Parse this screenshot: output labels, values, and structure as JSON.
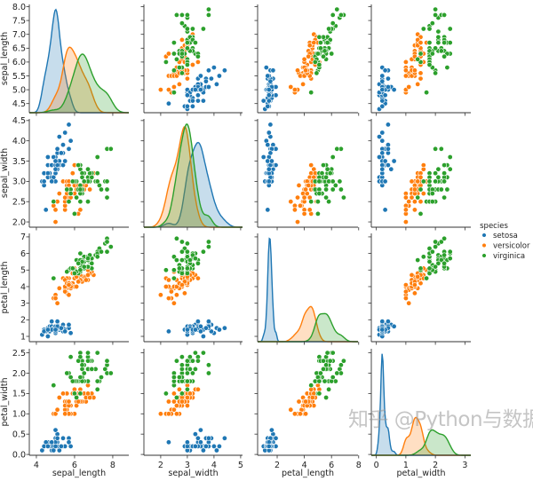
{
  "chart_data": {
    "type": "scatter",
    "kind": "pairplot",
    "diag_kind": "kde",
    "hue": "species",
    "grid": false,
    "legend": {
      "title": "species",
      "placement": "right",
      "entries": [
        "setosa",
        "versicolor",
        "virginica"
      ]
    },
    "colors": {
      "setosa": "#1f77b4",
      "versicolor": "#ff7f0e",
      "virginica": "#2ca02c"
    },
    "variables": [
      "sepal_length",
      "sepal_width",
      "petal_length",
      "petal_width"
    ],
    "axes": {
      "sepal_length": {
        "xlim": [
          3.63,
          8.84
        ],
        "ylim": [
          4.17,
          8.08
        ],
        "xticks": [
          "4",
          "6",
          "8"
        ],
        "yticks": [
          "4.5",
          "5.0",
          "5.5",
          "6.0",
          "6.5",
          "7.0",
          "7.5",
          "8.0"
        ]
      },
      "sepal_width": {
        "xlim": [
          1.37,
          5.07
        ],
        "ylim": [
          1.87,
          4.54
        ],
        "xticks": [
          "2",
          "3",
          "4",
          "5"
        ],
        "yticks": [
          "2.0",
          "2.5",
          "3.0",
          "3.5",
          "4.0",
          "4.5"
        ]
      },
      "petal_length": {
        "xlim": [
          0.56,
          7.95
        ],
        "ylim": [
          0.68,
          7.21
        ],
        "xticks": [
          "2",
          "4",
          "6",
          "8"
        ],
        "yticks": [
          "1",
          "2",
          "3",
          "4",
          "5",
          "6",
          "7"
        ]
      },
      "petal_width": {
        "xlim": [
          -0.17,
          3.2
        ],
        "ylim": [
          -0.02,
          2.6
        ],
        "xticks": [
          "0",
          "1",
          "2",
          "3"
        ],
        "yticks": [
          "0.0",
          "0.5",
          "1.0",
          "1.5",
          "2.0",
          "2.5"
        ]
      }
    },
    "data": {
      "setosa": [
        [
          5.1,
          3.5,
          1.4,
          0.2
        ],
        [
          4.9,
          3.0,
          1.4,
          0.2
        ],
        [
          4.7,
          3.2,
          1.3,
          0.2
        ],
        [
          4.6,
          3.1,
          1.5,
          0.2
        ],
        [
          5.0,
          3.6,
          1.4,
          0.2
        ],
        [
          5.4,
          3.9,
          1.7,
          0.4
        ],
        [
          4.6,
          3.4,
          1.4,
          0.3
        ],
        [
          5.0,
          3.4,
          1.5,
          0.2
        ],
        [
          4.4,
          2.9,
          1.4,
          0.2
        ],
        [
          4.9,
          3.1,
          1.5,
          0.1
        ],
        [
          5.4,
          3.7,
          1.5,
          0.2
        ],
        [
          4.8,
          3.4,
          1.6,
          0.2
        ],
        [
          4.8,
          3.0,
          1.4,
          0.1
        ],
        [
          4.3,
          3.0,
          1.1,
          0.1
        ],
        [
          5.8,
          4.0,
          1.2,
          0.2
        ],
        [
          5.7,
          4.4,
          1.5,
          0.4
        ],
        [
          5.4,
          3.9,
          1.3,
          0.4
        ],
        [
          5.1,
          3.5,
          1.4,
          0.3
        ],
        [
          5.7,
          3.8,
          1.7,
          0.3
        ],
        [
          5.1,
          3.8,
          1.5,
          0.3
        ],
        [
          5.4,
          3.4,
          1.7,
          0.2
        ],
        [
          5.1,
          3.7,
          1.5,
          0.4
        ],
        [
          4.6,
          3.6,
          1.0,
          0.2
        ],
        [
          5.1,
          3.3,
          1.7,
          0.5
        ],
        [
          4.8,
          3.4,
          1.9,
          0.2
        ],
        [
          5.0,
          3.0,
          1.6,
          0.2
        ],
        [
          5.0,
          3.4,
          1.6,
          0.4
        ],
        [
          5.2,
          3.5,
          1.5,
          0.2
        ],
        [
          5.2,
          3.4,
          1.4,
          0.2
        ],
        [
          4.7,
          3.2,
          1.6,
          0.2
        ],
        [
          4.8,
          3.1,
          1.6,
          0.2
        ],
        [
          5.4,
          3.4,
          1.5,
          0.4
        ],
        [
          5.2,
          4.1,
          1.5,
          0.1
        ],
        [
          5.5,
          4.2,
          1.4,
          0.2
        ],
        [
          4.9,
          3.1,
          1.5,
          0.2
        ],
        [
          5.0,
          3.2,
          1.2,
          0.2
        ],
        [
          5.5,
          3.5,
          1.3,
          0.2
        ],
        [
          4.9,
          3.6,
          1.4,
          0.1
        ],
        [
          4.4,
          3.0,
          1.3,
          0.2
        ],
        [
          5.1,
          3.4,
          1.5,
          0.2
        ],
        [
          5.0,
          3.5,
          1.3,
          0.3
        ],
        [
          4.5,
          2.3,
          1.3,
          0.3
        ],
        [
          4.4,
          3.2,
          1.3,
          0.2
        ],
        [
          5.0,
          3.5,
          1.6,
          0.6
        ],
        [
          5.1,
          3.8,
          1.9,
          0.4
        ],
        [
          4.8,
          3.0,
          1.4,
          0.3
        ],
        [
          5.1,
          3.8,
          1.6,
          0.2
        ],
        [
          4.6,
          3.2,
          1.4,
          0.2
        ],
        [
          5.3,
          3.7,
          1.5,
          0.2
        ],
        [
          5.0,
          3.3,
          1.4,
          0.2
        ]
      ],
      "versicolor": [
        [
          7.0,
          3.2,
          4.7,
          1.4
        ],
        [
          6.4,
          3.2,
          4.5,
          1.5
        ],
        [
          6.9,
          3.1,
          4.9,
          1.5
        ],
        [
          5.5,
          2.3,
          4.0,
          1.3
        ],
        [
          6.5,
          2.8,
          4.6,
          1.5
        ],
        [
          5.7,
          2.8,
          4.5,
          1.3
        ],
        [
          6.3,
          3.3,
          4.7,
          1.6
        ],
        [
          4.9,
          2.4,
          3.3,
          1.0
        ],
        [
          6.6,
          2.9,
          4.6,
          1.3
        ],
        [
          5.2,
          2.7,
          3.9,
          1.4
        ],
        [
          5.0,
          2.0,
          3.5,
          1.0
        ],
        [
          5.9,
          3.0,
          4.2,
          1.5
        ],
        [
          6.0,
          2.2,
          4.0,
          1.0
        ],
        [
          6.1,
          2.9,
          4.7,
          1.4
        ],
        [
          5.6,
          2.9,
          3.6,
          1.3
        ],
        [
          6.7,
          3.1,
          4.4,
          1.4
        ],
        [
          5.6,
          3.0,
          4.5,
          1.5
        ],
        [
          5.8,
          2.7,
          4.1,
          1.0
        ],
        [
          6.2,
          2.2,
          4.5,
          1.5
        ],
        [
          5.6,
          2.5,
          3.9,
          1.1
        ],
        [
          5.9,
          3.2,
          4.8,
          1.8
        ],
        [
          6.1,
          2.8,
          4.0,
          1.3
        ],
        [
          6.3,
          2.5,
          4.9,
          1.5
        ],
        [
          6.1,
          2.8,
          4.7,
          1.2
        ],
        [
          6.4,
          2.9,
          4.3,
          1.3
        ],
        [
          6.6,
          3.0,
          4.4,
          1.4
        ],
        [
          6.8,
          2.8,
          4.8,
          1.4
        ],
        [
          6.7,
          3.0,
          5.0,
          1.7
        ],
        [
          6.0,
          2.9,
          4.5,
          1.5
        ],
        [
          5.7,
          2.6,
          3.5,
          1.0
        ],
        [
          5.5,
          2.4,
          3.8,
          1.1
        ],
        [
          5.5,
          2.4,
          3.7,
          1.0
        ],
        [
          5.8,
          2.7,
          3.9,
          1.2
        ],
        [
          6.0,
          2.7,
          5.1,
          1.6
        ],
        [
          5.4,
          3.0,
          4.5,
          1.5
        ],
        [
          6.0,
          3.4,
          4.5,
          1.6
        ],
        [
          6.7,
          3.1,
          4.7,
          1.5
        ],
        [
          6.3,
          2.3,
          4.4,
          1.3
        ],
        [
          5.6,
          3.0,
          4.1,
          1.3
        ],
        [
          5.5,
          2.5,
          4.0,
          1.3
        ],
        [
          5.5,
          2.6,
          4.4,
          1.2
        ],
        [
          6.1,
          3.0,
          4.6,
          1.4
        ],
        [
          5.8,
          2.6,
          4.0,
          1.2
        ],
        [
          5.0,
          2.3,
          3.3,
          1.0
        ],
        [
          5.6,
          2.7,
          4.2,
          1.3
        ],
        [
          5.7,
          3.0,
          4.2,
          1.2
        ],
        [
          5.7,
          2.9,
          4.2,
          1.3
        ],
        [
          6.2,
          2.9,
          4.3,
          1.3
        ],
        [
          5.1,
          2.5,
          3.0,
          1.1
        ],
        [
          5.7,
          2.8,
          4.1,
          1.3
        ]
      ],
      "virginica": [
        [
          6.3,
          3.3,
          6.0,
          2.5
        ],
        [
          5.8,
          2.7,
          5.1,
          1.9
        ],
        [
          7.1,
          3.0,
          5.9,
          2.1
        ],
        [
          6.3,
          2.9,
          5.6,
          1.8
        ],
        [
          6.5,
          3.0,
          5.8,
          2.2
        ],
        [
          7.6,
          3.0,
          6.6,
          2.1
        ],
        [
          4.9,
          2.5,
          4.5,
          1.7
        ],
        [
          7.3,
          2.9,
          6.3,
          1.8
        ],
        [
          6.7,
          2.5,
          5.8,
          1.8
        ],
        [
          7.2,
          3.6,
          6.1,
          2.5
        ],
        [
          6.5,
          3.2,
          5.1,
          2.0
        ],
        [
          6.4,
          2.7,
          5.3,
          1.9
        ],
        [
          6.8,
          3.0,
          5.5,
          2.1
        ],
        [
          5.7,
          2.5,
          5.0,
          2.0
        ],
        [
          5.8,
          2.8,
          5.1,
          2.4
        ],
        [
          6.4,
          3.2,
          5.3,
          2.3
        ],
        [
          6.5,
          3.0,
          5.5,
          1.8
        ],
        [
          7.7,
          3.8,
          6.7,
          2.2
        ],
        [
          7.7,
          2.6,
          6.9,
          2.3
        ],
        [
          6.0,
          2.2,
          5.0,
          1.5
        ],
        [
          6.9,
          3.2,
          5.7,
          2.3
        ],
        [
          5.6,
          2.8,
          4.9,
          2.0
        ],
        [
          7.7,
          2.8,
          6.7,
          2.0
        ],
        [
          6.3,
          2.7,
          4.9,
          1.8
        ],
        [
          6.7,
          3.3,
          5.7,
          2.1
        ],
        [
          7.2,
          3.2,
          6.0,
          1.8
        ],
        [
          6.2,
          2.8,
          4.8,
          1.8
        ],
        [
          6.1,
          3.0,
          4.9,
          1.8
        ],
        [
          6.4,
          2.8,
          5.6,
          2.1
        ],
        [
          7.2,
          3.0,
          5.8,
          1.6
        ],
        [
          7.4,
          2.8,
          6.1,
          1.9
        ],
        [
          7.9,
          3.8,
          6.4,
          2.0
        ],
        [
          6.4,
          2.8,
          5.6,
          2.2
        ],
        [
          6.3,
          2.8,
          5.1,
          1.5
        ],
        [
          6.1,
          2.6,
          5.6,
          1.4
        ],
        [
          7.7,
          3.0,
          6.1,
          2.3
        ],
        [
          6.3,
          3.4,
          5.6,
          2.4
        ],
        [
          6.4,
          3.1,
          5.5,
          1.8
        ],
        [
          6.0,
          3.0,
          4.8,
          1.8
        ],
        [
          6.9,
          3.1,
          5.4,
          2.1
        ],
        [
          6.7,
          3.1,
          5.6,
          2.4
        ],
        [
          6.9,
          3.1,
          5.1,
          2.3
        ],
        [
          5.8,
          2.7,
          5.1,
          1.9
        ],
        [
          6.8,
          3.2,
          5.9,
          2.3
        ],
        [
          6.7,
          3.3,
          5.7,
          2.5
        ],
        [
          6.7,
          3.0,
          5.2,
          2.3
        ],
        [
          6.3,
          2.5,
          5.0,
          1.9
        ],
        [
          6.5,
          3.0,
          5.2,
          2.0
        ],
        [
          6.2,
          3.4,
          5.4,
          2.3
        ],
        [
          5.9,
          3.0,
          5.1,
          1.8
        ]
      ]
    }
  },
  "watermark": "知乎 @Python与数据挖掘"
}
